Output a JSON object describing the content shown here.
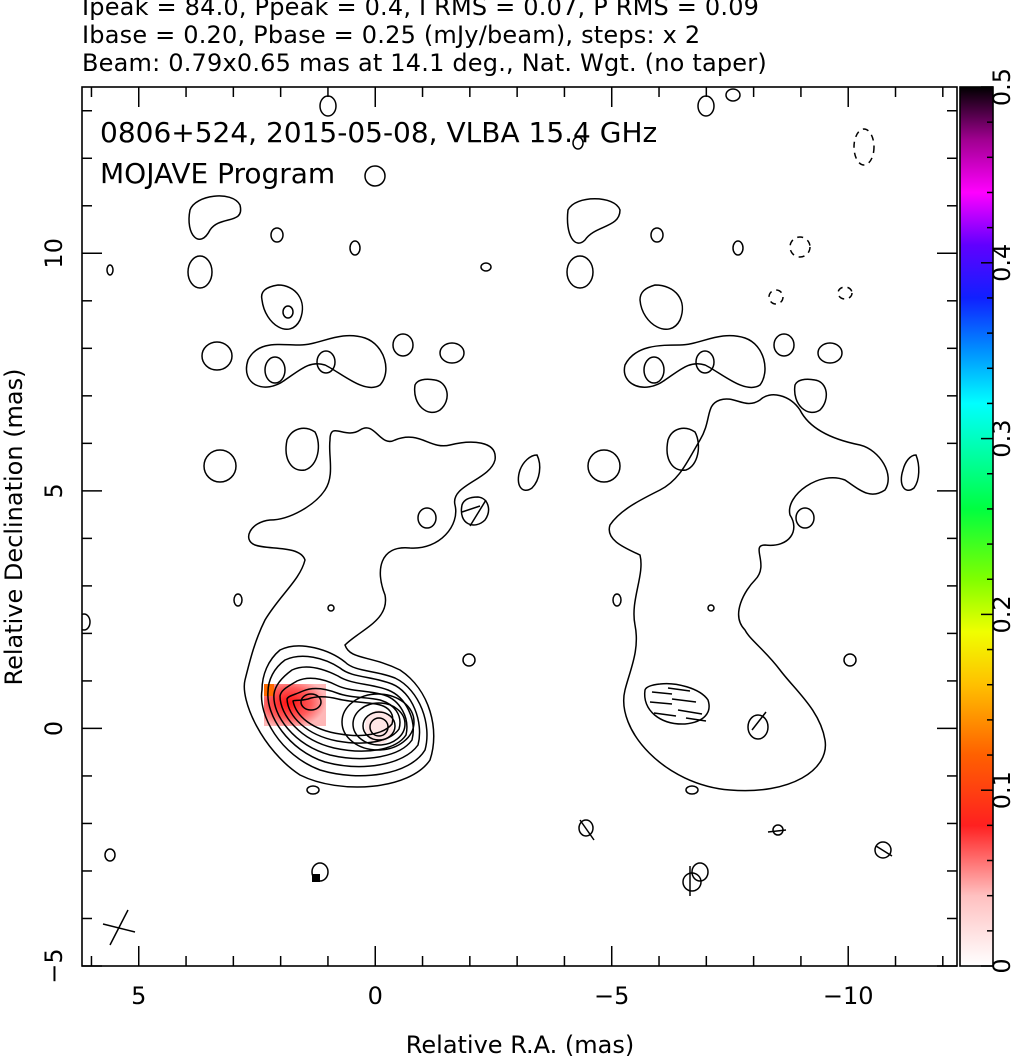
{
  "header": {
    "line1": "Ipeak = 84.0, Ppeak = 0.4, I RMS = 0.07, P RMS = 0.09",
    "line2": "Ibase = 0.20, Pbase = 0.25 (mJy/beam), steps: x 2",
    "line3": "Beam: 0.79x0.65 mas at 14.1 deg., Nat. Wgt. (no taper)"
  },
  "overlay": {
    "line1": "0806+524, 2015-05-08, VLBA 15.4 GHz",
    "line2": "MOJAVE Program"
  },
  "chart_data": {
    "type": "heatmap",
    "title": "",
    "xlabel": "Relative R.A. (mas)",
    "ylabel": "Relative Declination (mas)",
    "xlim": [
      6.2,
      -12.3
    ],
    "ylim": [
      -5,
      13.5
    ],
    "x_ticks": [
      5,
      0,
      -5,
      -10
    ],
    "x_tick_labels": [
      "5",
      "0",
      "−5",
      "−10"
    ],
    "y_ticks": [
      -5,
      0,
      5,
      10
    ],
    "y_tick_labels": [
      "−5",
      "0",
      "5",
      "10"
    ],
    "colorbar": {
      "min": 0,
      "max": 0.5,
      "ticks": [
        0,
        0.1,
        0.2,
        0.3,
        0.4,
        0.5
      ],
      "tick_labels": [
        "0",
        "0.1",
        "0.2",
        "0.3",
        "0.4",
        "0.5"
      ]
    },
    "colors": {
      "contour": "#000000",
      "polarization_low": "#ffd6d6",
      "polarization_high": "#ff1a1a"
    },
    "panels": [
      {
        "name": "Total intensity contours with polarized intensity colour",
        "x_range": [
          6.2,
          -2.5
        ]
      },
      {
        "name": "Contours with EVPA ticks",
        "x_range": [
          -2.5,
          -12.3
        ]
      }
    ],
    "core": {
      "x": 0.0,
      "y": 0.0
    },
    "jet_knot": {
      "x": 1.5,
      "y": 0.5
    },
    "beam": {
      "major_mas": 0.79,
      "minor_mas": 0.65,
      "pa_deg": 14.1,
      "x": 5.6,
      "y": -4.2
    }
  }
}
